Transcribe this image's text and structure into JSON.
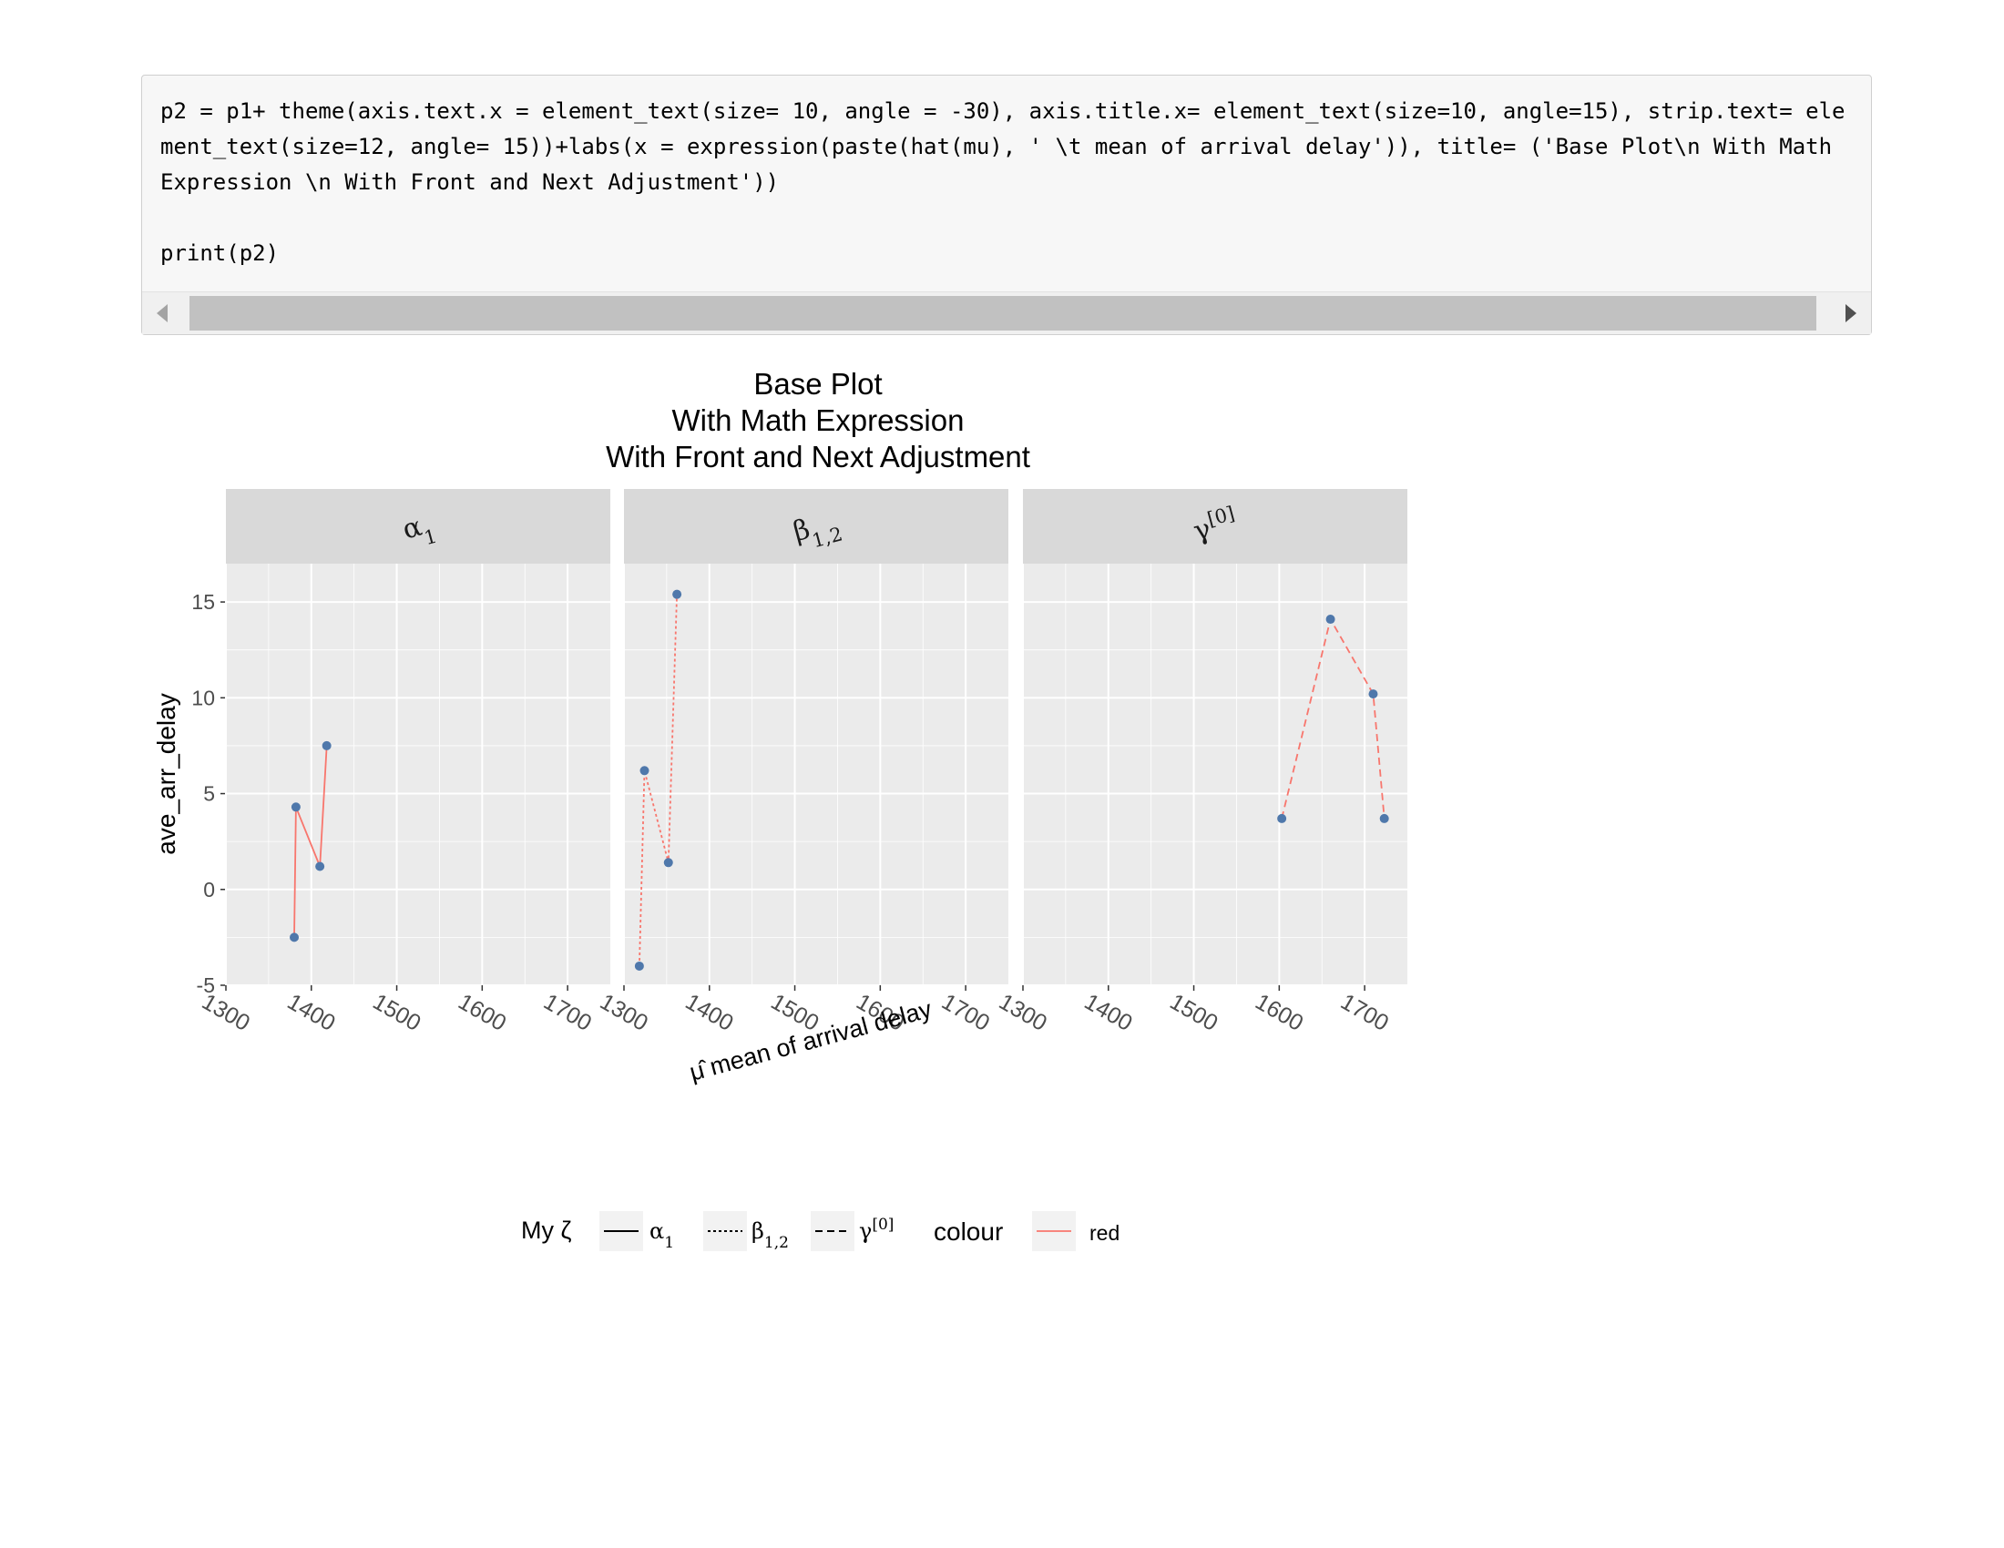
{
  "code": {
    "lines": [
      "p2 = p1+ theme(axis.text.x = element_text(size= 10, angle = -30), axis.title.x= element_text(size=10, angle=15), strip.text= element_text(size=12, angle= 15))+labs(x = expression(paste(hat(mu), ' \\t mean of arrival delay')), title= ('Base Plot\\n With Math Expression \\n With Front and Next Adjustment'))",
      "",
      "print(p2)"
    ]
  },
  "colors": {
    "panel_bg": "#ebebeb",
    "grid": "#ffffff",
    "strip_bg": "#d9d9d9",
    "line": "#f8766d",
    "point": "#4f78ab",
    "axis_text": "#4d4d4d"
  },
  "chart_data": {
    "type": "line",
    "title": [
      "Base Plot",
      "With Math Expression",
      "With Front and Next Adjustment"
    ],
    "xlabel": "μ̂  mean of arrival delay",
    "ylabel": "ave_arr_delay",
    "xlim": [
      1300,
      1750
    ],
    "ylim": [
      -5,
      17
    ],
    "x_ticks": [
      1300,
      1400,
      1500,
      1600,
      1700
    ],
    "y_ticks": [
      -5,
      0,
      5,
      10,
      15
    ],
    "grid": true,
    "facets": [
      {
        "strip": {
          "base": "α",
          "sub": "1",
          "sup": ""
        },
        "linetype": "solid",
        "points": [
          {
            "x": 1380,
            "y": -2.5
          },
          {
            "x": 1382,
            "y": 4.3
          },
          {
            "x": 1410,
            "y": 1.2
          },
          {
            "x": 1418,
            "y": 7.5
          }
        ]
      },
      {
        "strip": {
          "base": "β",
          "sub": "1,2",
          "sup": ""
        },
        "linetype": "dotted",
        "points": [
          {
            "x": 1318,
            "y": -4.0
          },
          {
            "x": 1324,
            "y": 6.2
          },
          {
            "x": 1352,
            "y": 1.4
          },
          {
            "x": 1362,
            "y": 15.4
          }
        ]
      },
      {
        "strip": {
          "base": "γ",
          "sub": "",
          "sup": "[0]"
        },
        "linetype": "dashed",
        "points": [
          {
            "x": 1603,
            "y": 3.7
          },
          {
            "x": 1660,
            "y": 14.1
          },
          {
            "x": 1710,
            "y": 10.2
          },
          {
            "x": 1723,
            "y": 3.7
          }
        ]
      }
    ],
    "legends": [
      {
        "title": "My ζ",
        "items": [
          {
            "base": "α",
            "sub": "1",
            "sup": "",
            "linetype": "solid"
          },
          {
            "base": "β",
            "sub": "1,2",
            "sup": "",
            "linetype": "dotted"
          },
          {
            "base": "γ",
            "sub": "",
            "sup": "[0]",
            "linetype": "dashed"
          }
        ]
      },
      {
        "title": "colour",
        "items": [
          {
            "label": "red",
            "color": "#f8766d"
          }
        ]
      }
    ]
  }
}
